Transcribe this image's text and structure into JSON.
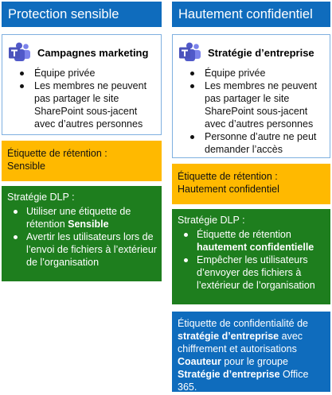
{
  "colors": {
    "header_blue": "#0f6cbd",
    "team_border": "#7fb0e0",
    "retention_yellow": "#ffb900",
    "dlp_green": "#1e7e1e",
    "sensitivity_blue": "#0f6cbd"
  },
  "columns": [
    {
      "header": "Protection sensible",
      "team": {
        "icon": "microsoft-teams-icon",
        "name": "Campagnes marketing",
        "bullets": [
          "Équipe privée",
          "Les membres ne peuvent pas partager le site SharePoint sous-jacent avec d’autres personnes"
        ]
      },
      "retention": {
        "line1": "Étiquette de rétention :",
        "line2": "Sensible"
      },
      "dlp": {
        "title": "Stratégie DLP :",
        "items": [
          {
            "pre": "Utiliser une étiquette de rétention ",
            "bold": "Sensible",
            "post": ""
          },
          {
            "pre": "Avertir les utilisateurs lors de l’envoi de fichiers à l’extérieur de l’organisation",
            "bold": "",
            "post": ""
          }
        ]
      }
    },
    {
      "header": "Hautement confidentiel",
      "team": {
        "icon": "microsoft-teams-icon",
        "name": "Stratégie d’entreprise",
        "bullets": [
          "Équipe privée",
          "Les membres ne peuvent pas partager le site SharePoint sous-jacent avec d’autres personnes",
          "Personne d’autre ne peut demander l’accès"
        ]
      },
      "retention": {
        "line1": "Étiquette de rétention :",
        "line2": "Hautement confidentiel"
      },
      "dlp": {
        "title": "Stratégie DLP :",
        "items": [
          {
            "pre": "Étiquette de rétention ",
            "bold": "hautement confidentielle",
            "post": ""
          },
          {
            "pre": "Empêcher les utilisateurs d’envoyer des fichiers à l’extérieur de l’organisation",
            "bold": "",
            "post": ""
          }
        ]
      },
      "sensitivity": {
        "t1": "Étiquette de confidentialité de ",
        "b1": "stratégie d’entreprise",
        "t2": " avec chiffrement et autorisations ",
        "b2": "Coauteur",
        "t3": " pour le groupe ",
        "b3": "Stratégie d’entreprise",
        "t4": " Office 365."
      }
    }
  ]
}
